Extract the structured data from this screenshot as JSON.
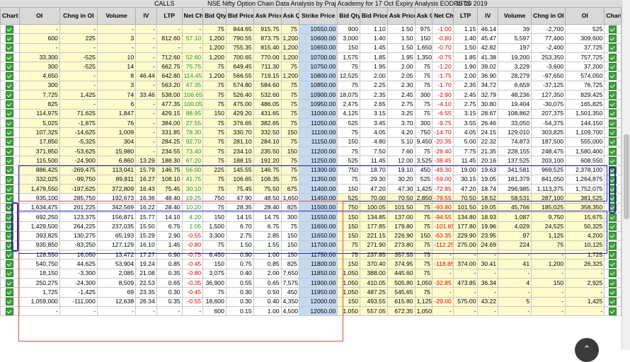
{
  "banner": {
    "calls_label": "CALLS",
    "title": "NSE Nifty Option Chain Data Analysis by Praj Academy for 17 Oct Expiry Analysis EOD 15 10 2019",
    "puts_label": "PUTS"
  },
  "columns": [
    "Chart",
    "OI",
    "Chng in OI",
    "Volume",
    "IV",
    "LTP",
    "Net Chng",
    "Bid Qty",
    "Bid Price",
    "Ask Price",
    "Ask Qty",
    "Strike Price",
    "Bid Qty",
    "Bid Price",
    "Ask Price",
    "Ask Qty",
    "Net Chng",
    "LTP",
    "IV",
    "Volume",
    "Chng in OI",
    "OI",
    "Chart"
  ],
  "rows": [
    [
      "-",
      "-",
      "-",
      "-",
      "-",
      "-",
      "75",
      "844.65",
      "915.75",
      "75",
      "10550.00",
      "900",
      "1.10",
      "1.50",
      "975",
      "-1.00",
      "1.15",
      "46.14",
      "39",
      "-2,700",
      "525"
    ],
    [
      "600",
      "225",
      "3",
      "-",
      "812.60",
      "57.10",
      "1,200",
      "790.55",
      "873.75",
      "1,200",
      "10600.00",
      "3,000",
      "1.40",
      "1.50",
      "150",
      "-0.80",
      "1.40",
      "45.47",
      "5,597",
      "77,400",
      "309,600"
    ],
    [
      "-",
      "-",
      "-",
      "-",
      "-",
      "-",
      "1,200",
      "755.35",
      "815.40",
      "1,200",
      "10650.00",
      "150",
      "1.45",
      "1.50",
      "1,650",
      "-0.70",
      "1.50",
      "42.82",
      "197",
      "-2,400",
      "37,725"
    ],
    [
      "33,300",
      "-525",
      "10",
      "-",
      "712.60",
      "52.60",
      "1,200",
      "700.65",
      "770.00",
      "1,200",
      "10700.00",
      "1,575",
      "1.85",
      "1.95",
      "1,350",
      "-0.75",
      "1.85",
      "41.38",
      "19,200",
      "253,350",
      "757,725"
    ],
    [
      "300",
      "-525",
      "14",
      "-",
      "662.75",
      "75.75",
      "75",
      "649.45",
      "711.30",
      "75",
      "10750.00",
      "75",
      "1.95",
      "2.00",
      "75",
      "-1.20",
      "1.90",
      "39.02",
      "3,229",
      "-3,600",
      "37,200"
    ],
    [
      "4,650",
      "-",
      "8",
      "46.44",
      "642.80",
      "114.45",
      "1,200",
      "566.55",
      "719.15",
      "1,200",
      "10800.00",
      "12,525",
      "2.00",
      "2.05",
      "75",
      "-1.75",
      "2.00",
      "36.90",
      "28,279",
      "-97,650",
      "574,050"
    ],
    [
      "300",
      "-",
      "3",
      "-",
      "563.20",
      "47.35",
      "75",
      "574.80",
      "584.60",
      "75",
      "10850.00",
      "75",
      "2.25",
      "2.30",
      "75",
      "-1.70",
      "2.35",
      "34.72",
      "6,659",
      "-37,125",
      "76,725"
    ],
    [
      "7,725",
      "1,425",
      "74",
      "33.46",
      "538.00",
      "106.65",
      "75",
      "526.40",
      "532.60",
      "75",
      "10900.00",
      "18,075",
      "2.35",
      "2.45",
      "300",
      "-2.90",
      "2.45",
      "32.79",
      "48,236",
      "127,350",
      "829,425"
    ],
    [
      "825",
      "-",
      "6",
      "-",
      "477.35",
      "100.05",
      "75",
      "475.00",
      "486.05",
      "75",
      "10950.00",
      "2,475",
      "2.65",
      "2.75",
      "75",
      "-4.10",
      "2.75",
      "30.80",
      "19,404",
      "-30,075",
      "165,825"
    ],
    [
      "114,975",
      "71,625",
      "1,847",
      "-",
      "429.15",
      "88.95",
      "150",
      "429.20",
      "431.65",
      "75",
      "11000.00",
      "4,125",
      "3.15",
      "3.25",
      "75",
      "-6.55",
      "3.15",
      "28.67",
      "108,862",
      "207,375",
      "1,501,350"
    ],
    [
      "5,025",
      "-1,875",
      "76",
      "-",
      "384.00",
      "27.55",
      "75",
      "376.65",
      "382.65",
      "75",
      "11050.00",
      "525",
      "3.45",
      "3.70",
      "300",
      "-9.75",
      "3.55",
      "26.46",
      "33,050",
      "-54,375",
      "144,150"
    ],
    [
      "107,325",
      "-14,625",
      "1,009",
      "-",
      "331.85",
      "78.30",
      "75",
      "330.70",
      "332.50",
      "150",
      "11100.00",
      "75",
      "4.05",
      "4.20",
      "750",
      "-14.70",
      "4.05",
      "24.15",
      "129,010",
      "303,825",
      "1,109,700"
    ],
    [
      "17,850",
      "-5,325",
      "304",
      "-",
      "284.25",
      "92.70",
      "75",
      "281.10",
      "284.10",
      "75",
      "11150.00",
      "150",
      "4.80",
      "5.10",
      "9,450",
      "-20.35",
      "5.00",
      "22.32",
      "74,873",
      "187,500",
      "555,000"
    ],
    [
      "371,850",
      "-53,625",
      "15,980",
      "-",
      "234.55",
      "73.40",
      "75",
      "234.10",
      "235.50",
      "150",
      "11200.00",
      "75",
      "7.50",
      "7.60",
      "75",
      "-28.40",
      "7.75",
      "21.35",
      "228,155",
      "248,475",
      "1,580,400"
    ],
    [
      "115,500",
      "-24,900",
      "6,860",
      "13.29",
      "188.30",
      "67.20",
      "75",
      "188.15",
      "191.20",
      "75",
      "11250.00",
      "525",
      "11.45",
      "12.00",
      "3,525",
      "-38.45",
      "11.45",
      "20.16",
      "137,525",
      "203,100",
      "608,550"
    ],
    [
      "886,425",
      "-269,475",
      "113,041",
      "15.79",
      "146.75",
      "56.00",
      "225",
      "145.55",
      "146.75",
      "75",
      "11300.00",
      "750",
      "18.70",
      "19.10",
      "450",
      "-49.30",
      "19.00",
      "19.63",
      "341,581",
      "969,525",
      "2,378,100"
    ],
    [
      "332,025",
      "-99,750",
      "89,811",
      "16.27",
      "108.10",
      "41.75",
      "75",
      "106.65",
      "108.35",
      "75",
      "11350.00",
      "75",
      "29.30",
      "30.20",
      "525",
      "-59.00",
      "30.15",
      "19.05",
      "181,379",
      "841,050",
      "1,264,875"
    ],
    [
      "1,478,550",
      "-197,625",
      "372,809",
      "16.43",
      "75.45",
      "30.10",
      "75",
      "75.45",
      "75.50",
      "675",
      "11400.00",
      "150",
      "47.20",
      "47.30",
      "1,425",
      "-72.85",
      "47.20",
      "18.74",
      "296,985",
      "1,113,375",
      "1,752,075"
    ],
    [
      "935,100",
      "285,750",
      "192,673",
      "16.36",
      "48.40",
      "19.25",
      "750",
      "47.90",
      "48.50",
      "1,650",
      "11450.00",
      "525",
      "70.00",
      "70.50",
      "2,850",
      "-79.55",
      "70.50",
      "18.52",
      "58,531",
      "287,100",
      "381,525"
    ],
    [
      "1,634,475",
      "201,225",
      "342,569",
      "16.22",
      "28.40",
      "10.20",
      "75",
      "28.35",
      "28.40",
      "825",
      "11500.00",
      "750",
      "100.05",
      "101.50",
      "75",
      "-93.80",
      "101.50",
      "19.05",
      "45,766",
      "185,025",
      "358,350"
    ],
    [
      "692,250",
      "123,375",
      "156,871",
      "15.77",
      "14.10",
      "4.20",
      "150",
      "14.15",
      "14.75",
      "300",
      "11550.00",
      "150",
      "134.85",
      "137.00",
      "75",
      "-94.55",
      "134.80",
      "18.93",
      "1,087",
      "9,750",
      "15,675"
    ],
    [
      "1,429,500",
      "264,225",
      "237,035",
      "15.50",
      "6.75",
      "1.05",
      "1,500",
      "6.70",
      "6.75",
      "75",
      "11600.00",
      "150",
      "177.85",
      "179.80",
      "75",
      "-101.65",
      "177.80",
      "19.96",
      "4,029",
      "24,525",
      "50,325"
    ],
    [
      "393,825",
      "130,275",
      "65,193",
      "15.29",
      "2.90",
      "-0.55",
      "3,300",
      "2.75",
      "2.85",
      "150",
      "11650.00",
      "150",
      "221.15",
      "226.90",
      "150",
      "-63.35",
      "229.90",
      "23.95",
      "97",
      "1,125",
      "4,200"
    ],
    [
      "935,850",
      "-83,250",
      "127,129",
      "16.10",
      "1.45",
      "-0.80",
      "75",
      "1.50",
      "1.55",
      "150",
      "11700.00",
      "75",
      "271.90",
      "273.80",
      "75",
      "-112.25",
      "275.00",
      "24.69",
      "224",
      "75",
      "10,125"
    ],
    [
      "128,550",
      "16,050",
      "13,472",
      "17.27",
      "0.90",
      "-0.75",
      "6,450",
      "0.90",
      "1.00",
      "150",
      "11750.00",
      "75",
      "237.85",
      "357.55",
      "75",
      "-",
      "-",
      "-",
      "-",
      "-",
      "1,725"
    ],
    [
      "540,750",
      "44,625",
      "53,904",
      "19.24",
      "0.85",
      "-0.45",
      "150",
      "0.75",
      "0.85",
      "825",
      "11800.00",
      "150",
      "370.40",
      "374.95",
      "75",
      "-118.85",
      "374.00",
      "30.41",
      "41",
      "1,200",
      "26,325"
    ],
    [
      "18,150",
      "-3,300",
      "2,085",
      "21.08",
      "0.35",
      "-0.80",
      "3,075",
      "0.40",
      "2.00",
      "7,650",
      "11850.00",
      "1,050",
      "388.00",
      "445.60",
      "75",
      "-",
      "-",
      "-",
      "-",
      "-",
      "-"
    ],
    [
      "250,275",
      "-24,300",
      "8,509",
      "22.53",
      "0.65",
      "-0.35",
      "36,900",
      "0.55",
      "0.65",
      "7,575",
      "11900.00",
      "1,050",
      "410.05",
      "505.80",
      "1,050",
      "-32.85",
      "473.85",
      "36.34",
      "4",
      "150",
      "2,925"
    ],
    [
      "1,725",
      "-1,425",
      "69",
      "23.35",
      "0.30",
      "-0.45",
      "75",
      "0.30",
      "0.50",
      "450",
      "11950.00",
      "1,050",
      "487.25",
      "545.65",
      "75",
      "-",
      "-",
      "-",
      "-",
      "-",
      "-"
    ],
    [
      "1,059,000",
      "-111,000",
      "12,638",
      "26.34",
      "0.35",
      "-0.55",
      "18,600",
      "0.30",
      "0.40",
      "4,350",
      "12000.00",
      "150",
      "493.55",
      "615.80",
      "1,125",
      "-29.00",
      "575.00",
      "43.22",
      "5",
      "-",
      "1,425"
    ],
    [
      "-",
      "-",
      "-",
      "-",
      "-",
      "-",
      "600",
      "0.15",
      "1.00",
      "4,500",
      "12050.00",
      "1,050",
      "557.05",
      "672.35",
      "1,050",
      "-",
      "-",
      "-",
      "-",
      "-",
      "-"
    ]
  ],
  "fab_icon": "chevron-up-icon"
}
